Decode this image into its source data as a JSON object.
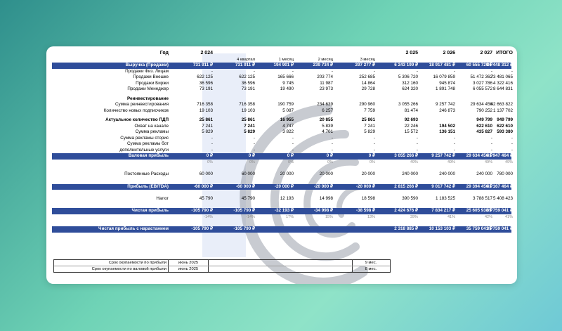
{
  "columns": [
    "2 024",
    "4 квартал",
    "1 месяц",
    "2 месяц",
    "3 месяц",
    "2 025",
    "2 026",
    "2 027",
    "ИТОГО"
  ],
  "header_label": "Год",
  "rows": [
    {
      "label": "Выручка (Продажи)",
      "style": "blue",
      "v": [
        "731 911 ₽",
        "731 911 ₽",
        "194 901 ₽",
        "239 734 ₽",
        "297 277 ₽",
        "6 243 199 ₽",
        "18 917 481 ₽",
        "60 555 720 ₽",
        "86 448 312 ₽"
      ]
    },
    {
      "label": "Продажи Физ. Лицам",
      "v": [
        "-",
        "-",
        "-",
        "-",
        "-",
        "-",
        "-",
        "-",
        "-"
      ]
    },
    {
      "label": "Продажи Внешке",
      "v": [
        "622 125",
        "622 125",
        "165 666",
        "203 774",
        "252 685",
        "5 306 720",
        "16 079 859",
        "51 472 362",
        "73 481 065"
      ]
    },
    {
      "label": "Продажи Биржи",
      "v": [
        "36 596",
        "36 596",
        "9 745",
        "11 987",
        "14 864",
        "312 160",
        "945 874",
        "3 027 786",
        "4 322 416"
      ]
    },
    {
      "label": "Продажи Менеджер",
      "v": [
        "73 191",
        "73 191",
        "19 490",
        "23 973",
        "29 728",
        "624 320",
        "1 891 748",
        "6 055 572",
        "8 644 831"
      ]
    },
    {
      "label": "",
      "style": "gap"
    },
    {
      "label": "Реинвестирование",
      "style": "bold",
      "v": [
        "",
        "",
        "",
        "",
        "",
        "",
        "",
        "",
        ""
      ]
    },
    {
      "label": "Сумма реинвестирования",
      "v": [
        "716 358",
        "716 358",
        "190 759",
        "234 639",
        "290 960",
        "3 055 266",
        "9 257 742",
        "29 634 456",
        "42 663 822"
      ]
    },
    {
      "label": "Количество новых подписчиков",
      "v": [
        "19 103",
        "19 103",
        "5 087",
        "6 257",
        "7 759",
        "81 474",
        "246 873",
        "790 252",
        "1 137 702"
      ]
    },
    {
      "label": "",
      "style": "gap"
    },
    {
      "label": "Актуальное количество ПДП",
      "style": "bold",
      "v": [
        "25 861",
        "25 861",
        "16 955",
        "20 855",
        "25 861",
        "92 693",
        "",
        "949 799",
        "949 799"
      ]
    },
    {
      "label": "Охват на канале",
      "v": [
        "7 241",
        "7 241",
        "4 747",
        "5 839",
        "7 241",
        "22 246",
        "194 502",
        "622 610",
        "622 610"
      ],
      "boldIdx": [
        1,
        6,
        7,
        8
      ]
    },
    {
      "label": "Сумма рекламы",
      "v": [
        "5 829",
        "5 829",
        "3 822",
        "4 701",
        "5 829",
        "15 572",
        "136 151",
        "435 827",
        "593 380"
      ],
      "boldIdx": [
        1,
        6,
        7,
        8
      ]
    },
    {
      "label": "Сумма рекламы сторис",
      "v": [
        "-",
        "-",
        "-",
        "-",
        "-",
        "-",
        "-",
        "-",
        "-"
      ]
    },
    {
      "label": "Сумма рекламы бот",
      "v": [
        "-",
        "-",
        "-",
        "-",
        "-",
        "-",
        "-",
        "-",
        "-"
      ]
    },
    {
      "label": "дополнительные услуги",
      "v": [
        "-",
        "-",
        "-",
        "-",
        "-",
        "-",
        "-",
        "-",
        "-"
      ]
    },
    {
      "label": "Валовая прибыль",
      "style": "blue",
      "v": [
        "0 ₽",
        "0 ₽",
        "0 ₽",
        "0 ₽",
        "0 ₽",
        "3 055 266 ₽",
        "9 257 742 ₽",
        "29 634 456 ₽",
        "41 947 464 ₽"
      ]
    },
    {
      "label": "",
      "style": "pct",
      "v": [
        "0%",
        "0%",
        "0%",
        "0%",
        "0%",
        "49%",
        "49%",
        "49%",
        "49%"
      ]
    },
    {
      "label": "",
      "style": "gap2"
    },
    {
      "label": "Постоянные Расходы",
      "v": [
        "60 000",
        "60 000",
        "20 000",
        "20 000",
        "20 000",
        "240 000",
        "240 000",
        "240 000",
        "780 000"
      ]
    },
    {
      "label": "",
      "style": "gap2"
    },
    {
      "label": "Прибыль (EBITDA)",
      "style": "blue",
      "v": [
        "-60 000 ₽",
        "-60 000 ₽",
        "-20 000 ₽",
        "-20 000 ₽",
        "-20 000 ₽",
        "2 815 266 ₽",
        "9 017 742 ₽",
        "29 394 456 ₽",
        "41 167 464 ₽"
      ]
    },
    {
      "label": "",
      "style": "pct",
      "v": [
        "",
        "",
        "",
        "",
        "",
        "",
        "",
        "",
        ""
      ]
    },
    {
      "label": "Налог",
      "v": [
        "45 790",
        "45 790",
        "12 193",
        "14 998",
        "18 598",
        "390 590",
        "1 183 525",
        "3 788 517",
        "5 408 423"
      ]
    },
    {
      "label": "",
      "style": "gap2"
    },
    {
      "label": "Чистая прибыль",
      "style": "blue",
      "v": [
        "-105 790 ₽",
        "-105 790 ₽",
        "-32 193 ₽",
        "-34 998 ₽",
        "-38 598 ₽",
        "2 424 676 ₽",
        "7 834 217 ₽",
        "25 605 938 ₽",
        "35 759 041 ₽"
      ]
    },
    {
      "label": "",
      "style": "pct",
      "v": [
        "-14%",
        "-14%",
        "17%",
        "15%",
        "13%",
        "39%",
        "41%",
        "42%",
        "41%"
      ]
    },
    {
      "label": "",
      "style": "gap2"
    },
    {
      "label": "Чистая прибыль с нарастанием",
      "style": "blue",
      "v": [
        "-105 790 ₽",
        "-105 790 ₽",
        "",
        "",
        "",
        "2 318 885 ₽",
        "10 153 103 ₽",
        "35 759 041 ₽",
        "35 759 041 ₽"
      ]
    }
  ],
  "payback": [
    {
      "label": "Срок окупаемости по прибыли",
      "date": "июнь 2025",
      "months": "9 мес."
    },
    {
      "label": "Срок окупаемости по валовой прибыли",
      "date": "июнь 2025",
      "months": "8 мес."
    }
  ],
  "colors": {
    "header_blue": "#2f4d9a",
    "highlight": "#e9eef9",
    "bg_teal": "#6fd3b6"
  }
}
